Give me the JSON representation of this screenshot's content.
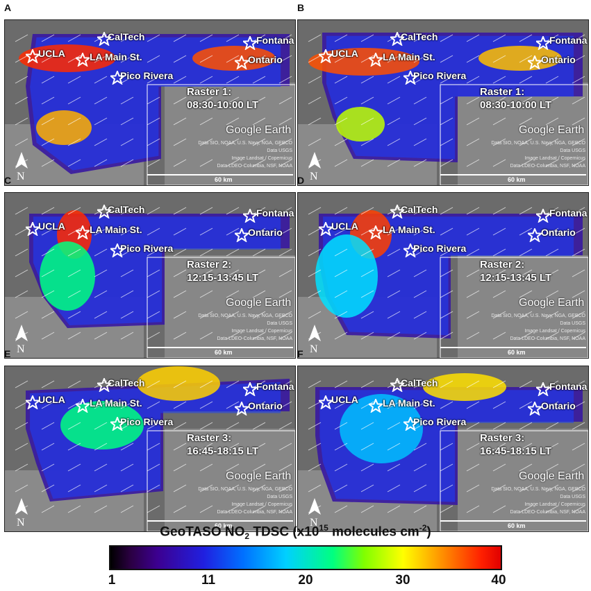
{
  "panels": [
    {
      "letter": "A",
      "raster": "Raster 1:",
      "time": "08:30-10:00 LT"
    },
    {
      "letter": "B",
      "raster": "Raster 1:",
      "time": "08:30-10:00 LT"
    },
    {
      "letter": "C",
      "raster": "Raster 2:",
      "time": "12:15-13:45 LT"
    },
    {
      "letter": "D",
      "raster": "Raster 2:",
      "time": "12:15-13:45 LT"
    },
    {
      "letter": "E",
      "raster": "Raster 3:",
      "time": "16:45-18:15 LT"
    },
    {
      "letter": "F",
      "raster": "Raster 3:",
      "time": "16:45-18:15 LT"
    }
  ],
  "sites": {
    "caltech": "CalTech",
    "fontana": "Fontana",
    "ucla": "UCLA",
    "la_main": "LA Main St.",
    "ontario": "Ontario",
    "pico": "Pico Rivera"
  },
  "map_labels": {
    "google_earth": "Google Earth",
    "credit1": "Data SIO, NOAA, U.S. Navy, NGA, GEBCO",
    "credit2": "Data USGS",
    "credit3": "Image Landsat / Copernicus",
    "credit4": "Data LDEO-Columbia, NSF, NOAA",
    "scale": "60 km",
    "north": "N"
  },
  "colorbar": {
    "title_main": "GeoTASO NO",
    "title_sub": "2",
    "title_mid": " TDSC (x10",
    "title_sup": "15",
    "title_end": " molecules cm",
    "title_sup2": "-2",
    "title_close": ")",
    "ticks": [
      "1",
      "11",
      "20",
      "30",
      "40"
    ]
  }
}
